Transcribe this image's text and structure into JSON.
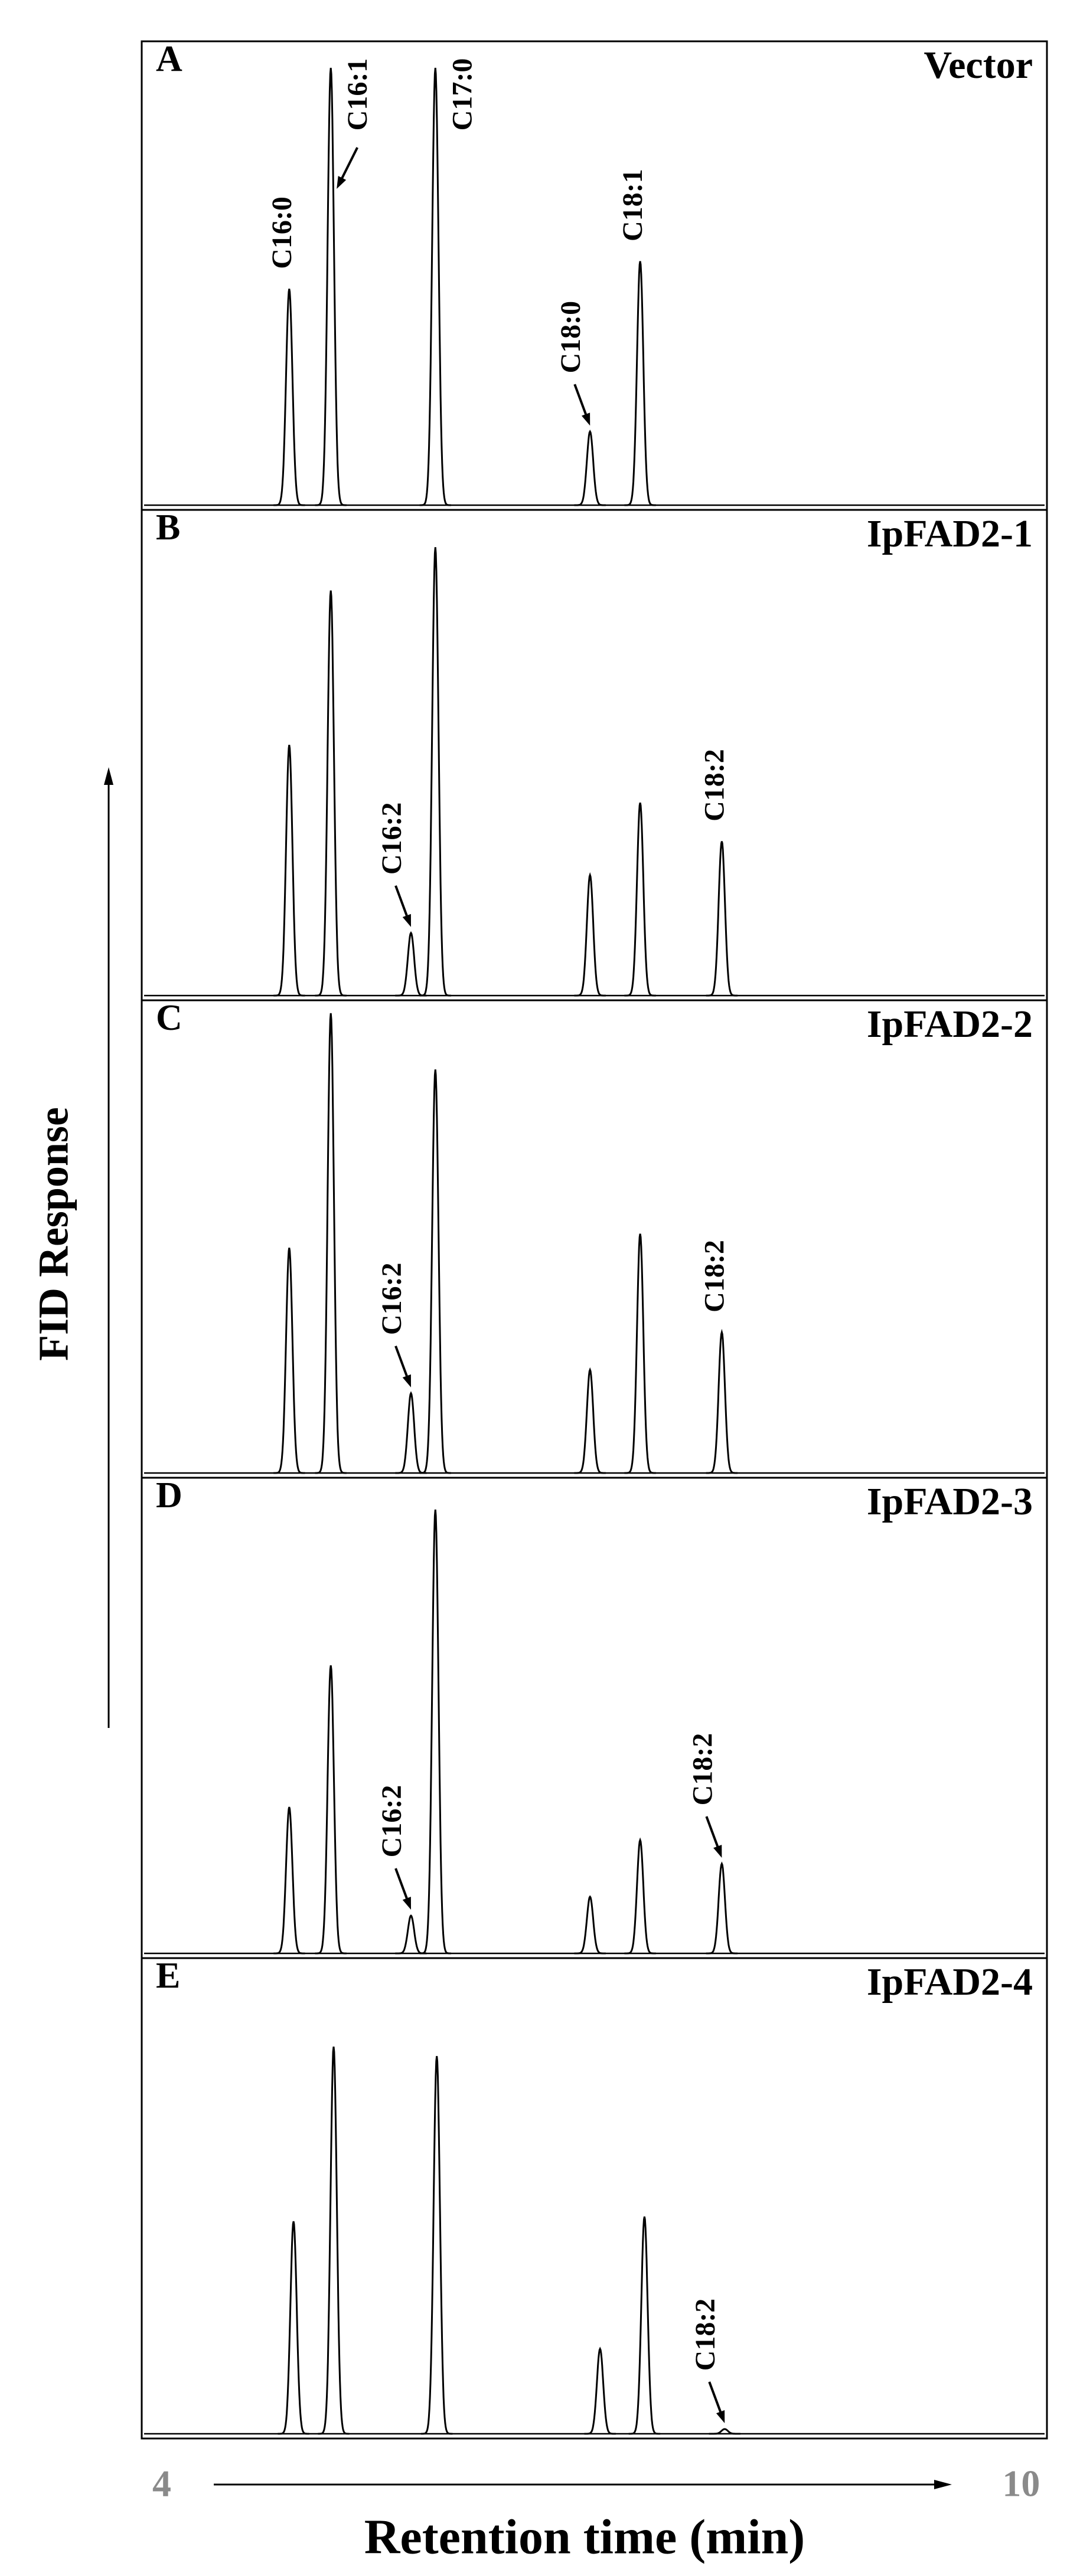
{
  "chart_data": [
    {
      "type": "chromatogram",
      "panel": "A",
      "title": "Vector",
      "color": "#000000",
      "ylim": [
        0,
        1
      ],
      "x": [
        4.89,
        5.18,
        5.91,
        6.99,
        7.34
      ],
      "values": [
        0.47,
        0.95,
        0.95,
        0.16,
        0.53
      ],
      "categories": [
        "C16:0",
        "C16:1",
        "C17:0",
        "C18:0",
        "C18:1"
      ]
    },
    {
      "type": "chromatogram",
      "panel": "B",
      "title": "IpFAD2-1",
      "color": "#000000",
      "ylim": [
        0,
        1
      ],
      "x": [
        4.89,
        5.18,
        5.74,
        5.91,
        6.99,
        7.34,
        7.91
      ],
      "values": [
        0.52,
        0.84,
        0.13,
        0.93,
        0.25,
        0.4,
        0.32
      ],
      "categories": [
        null,
        null,
        "C16:2",
        null,
        null,
        null,
        "C18:2"
      ]
    },
    {
      "type": "chromatogram",
      "panel": "C",
      "title": "IpFAD2-2",
      "color": "#000000",
      "ylim": [
        0,
        1
      ],
      "x": [
        4.89,
        5.18,
        5.74,
        5.91,
        6.99,
        7.34,
        7.91
      ],
      "values": [
        0.48,
        0.98,
        0.17,
        0.86,
        0.22,
        0.51,
        0.3
      ],
      "categories": [
        null,
        null,
        "C16:2",
        null,
        null,
        null,
        "C18:2"
      ]
    },
    {
      "type": "chromatogram",
      "panel": "D",
      "title": "IpFAD2-3",
      "color": "#000000",
      "ylim": [
        0,
        1
      ],
      "x": [
        4.89,
        5.18,
        5.74,
        5.91,
        6.99,
        7.34,
        7.91
      ],
      "values": [
        0.31,
        0.61,
        0.08,
        0.94,
        0.12,
        0.24,
        0.19
      ],
      "categories": [
        null,
        null,
        "C16:2",
        null,
        null,
        null,
        "C18:2"
      ]
    },
    {
      "type": "chromatogram",
      "panel": "E",
      "title": "IpFAD2-4",
      "color": "#000000",
      "ylim": [
        0,
        1
      ],
      "x": [
        4.92,
        5.2,
        5.92,
        7.06,
        7.37,
        7.93
      ],
      "values": [
        0.45,
        0.82,
        0.8,
        0.18,
        0.46,
        0.01
      ],
      "categories": [
        null,
        null,
        null,
        null,
        null,
        "C18:2"
      ]
    }
  ],
  "x_axis": {
    "label": "Retention time (min)",
    "xlim": [
      3.86,
      10.18
    ],
    "xticks": [
      4,
      10
    ]
  },
  "y_axis": {
    "label": "FID Response"
  }
}
